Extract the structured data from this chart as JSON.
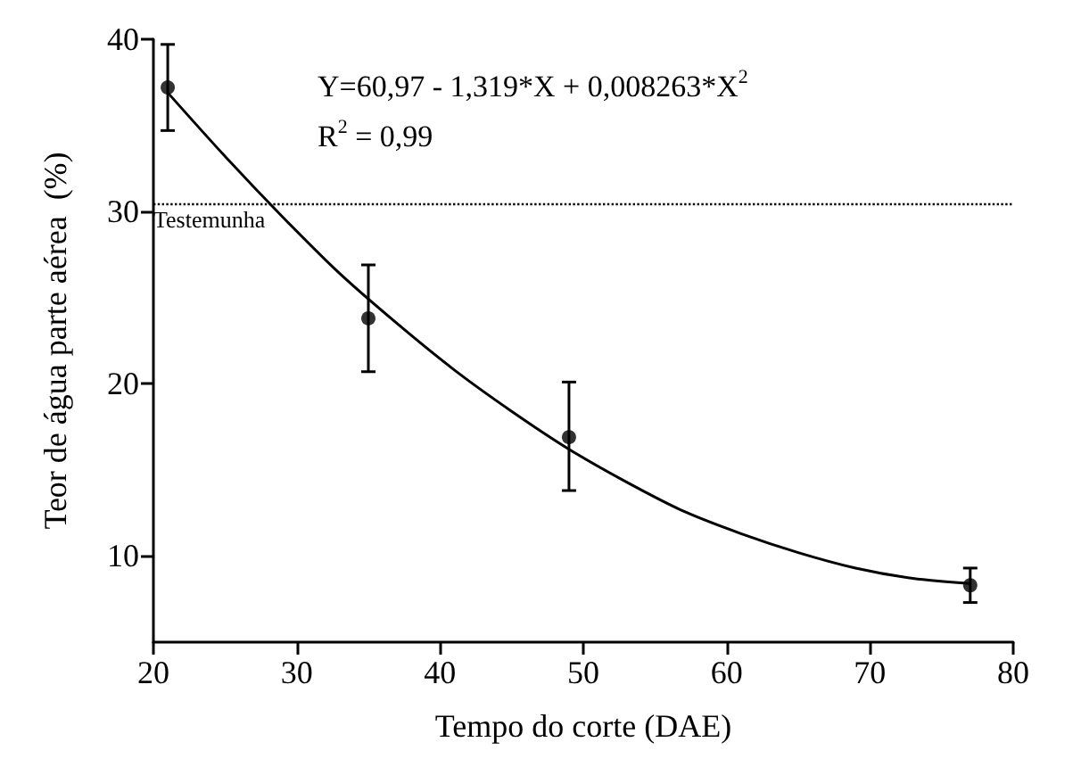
{
  "chart_data": {
    "type": "scatter",
    "xlabel": "Tempo do corte (DAE)",
    "ylabel": "Teor de água parte aérea  (%)",
    "xlim": [
      20,
      80
    ],
    "xticks": [
      20,
      30,
      40,
      50,
      60,
      70,
      80
    ],
    "ylim": [
      5,
      40
    ],
    "yticks": [
      10,
      20,
      30,
      40
    ],
    "grid": false,
    "series": [
      {
        "color": "#000000",
        "marker": "circle",
        "x": [
          21,
          35,
          49,
          77
        ],
        "values": [
          37.2,
          23.8,
          16.9,
          8.3
        ],
        "errors": [
          [
            34.7,
            39.7
          ],
          [
            20.7,
            26.9
          ],
          [
            13.8,
            20.1
          ],
          [
            7.3,
            9.3
          ]
        ]
      },
      {
        "type": "line",
        "color": "#000000",
        "marker": "none",
        "line_style": "solid",
        "x": [
          21,
          25,
          29,
          33,
          37,
          41,
          45,
          49,
          53,
          57,
          61,
          65,
          69,
          73,
          77
        ],
        "values": [
          36.9,
          33.2,
          29.7,
          26.4,
          23.5,
          20.8,
          18.4,
          16.2,
          14.3,
          12.6,
          11.3,
          10.2,
          9.3,
          8.7,
          8.4
        ]
      }
    ],
    "ref_lines": [
      {
        "axis": "y",
        "value": 30.4,
        "label": "Testemunha",
        "color": "#000000",
        "line_style": "dotted"
      }
    ],
    "annotations": [
      "Y=60,97 - 1,319*X + 0,008263*X$^{2}$",
      "R$^{2}$ = 0,99"
    ]
  }
}
